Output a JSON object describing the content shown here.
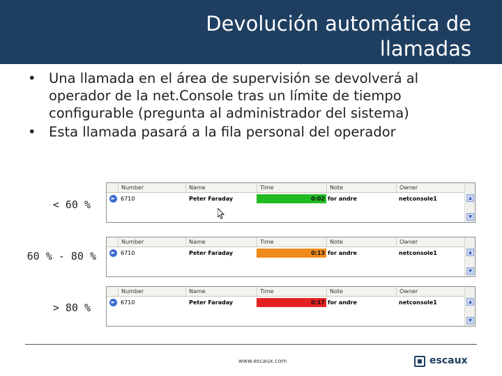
{
  "title": "Devolución automática de\nllamadas",
  "bullets": [
    "Una llamada en el área de supervisión se devolverá al operador de la net.Console tras un límite de tiempo configurable (pregunta al administrador del sistema)",
    "Esta llamada pasará a la fila personal del operador"
  ],
  "columns": {
    "number": "Number",
    "name": "Name",
    "time": "Time",
    "note": "Note",
    "owner": "Owner"
  },
  "rows": [
    {
      "label": "< 60 %",
      "number": "6710",
      "name": "Peter Faraday",
      "time": "0:02",
      "note": "for andre",
      "owner": "netconsole1",
      "color": "#22bb22"
    },
    {
      "label": "60 % - 80 %",
      "number": "6710",
      "name": "Peter Faraday",
      "time": "0:13",
      "note": "for andre",
      "owner": "netconsole1",
      "color": "#f08a1a"
    },
    {
      "label": "> 80 %",
      "number": "6710",
      "name": "Peter Faraday",
      "time": "0:17",
      "note": "for andre",
      "owner": "netconsole1",
      "color": "#e52222"
    }
  ],
  "footer": {
    "url": "www.escaux.com",
    "logo": "escaux"
  },
  "icons": {
    "row": "call-arrow-icon",
    "cursor": "mouse-pointer-icon",
    "logo": "escaux-logo-icon"
  }
}
